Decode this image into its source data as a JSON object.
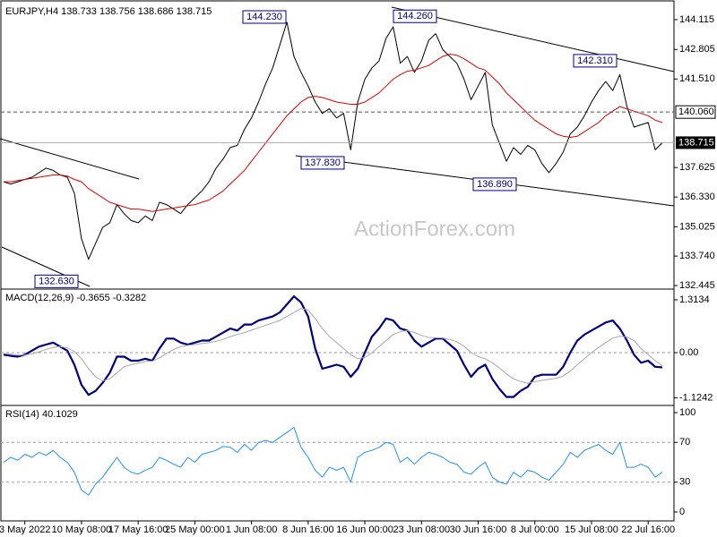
{
  "chart_data": [
    {
      "type": "line",
      "title": "EURJPY,H4 138.733 138.756 138.686 138.715",
      "watermark": "ActionForex.com",
      "categories": [
        null,
        null,
        null,
        "3 May 2022",
        null,
        null,
        null,
        null,
        null,
        null,
        null,
        "10 May 08:00",
        null,
        null,
        null,
        null,
        null,
        null,
        null,
        "17 May 16:00",
        null,
        null,
        null,
        null,
        null,
        null,
        null,
        "25 May 00:00",
        null,
        null,
        null,
        null,
        null,
        null,
        null,
        "1 Jun 08:00",
        null,
        null,
        null,
        null,
        null,
        null,
        null,
        "8 Jun 16:00",
        null,
        null,
        null,
        null,
        null,
        null,
        null,
        "16 Jun 00:00",
        null,
        null,
        null,
        null,
        null,
        null,
        null,
        "23 Jun 08:00",
        null,
        null,
        null,
        null,
        null,
        null,
        null,
        "30 Jun 16:00",
        null,
        null,
        null,
        null,
        null,
        null,
        null,
        "8 Jul 00:00",
        null,
        null,
        null,
        null,
        null,
        null,
        null,
        "15 Jul 08:00",
        null,
        null,
        null,
        null,
        null,
        null,
        null,
        "22 Jul 16:00",
        null,
        null
      ],
      "series": [
        {
          "color": "#000000",
          "width": 1,
          "values": [
            137.0,
            136.9,
            137.0,
            137.1,
            137.2,
            137.4,
            137.6,
            137.5,
            137.3,
            137.2,
            136.5,
            134.5,
            133.6,
            134.3,
            135.0,
            135.2,
            136.0,
            135.6,
            135.3,
            135.2,
            135.5,
            135.3,
            136.1,
            136.0,
            135.8,
            135.6,
            136.0,
            136.3,
            136.6,
            137.0,
            137.6,
            138.0,
            138.5,
            138.6,
            139.3,
            139.8,
            140.5,
            141.3,
            142.0,
            143.0,
            144.0,
            142.5,
            141.8,
            141.2,
            140.5,
            140.0,
            140.2,
            139.8,
            140.0,
            138.4,
            140.5,
            141.5,
            142.0,
            142.3,
            143.3,
            143.8,
            142.2,
            142.5,
            141.8,
            142.3,
            143.2,
            143.5,
            142.8,
            142.5,
            142.2,
            141.5,
            140.6,
            141.2,
            141.8,
            139.5,
            138.7,
            137.9,
            138.5,
            138.2,
            138.6,
            138.4,
            137.8,
            137.4,
            137.8,
            138.3,
            139.1,
            139.4,
            139.9,
            140.5,
            141.0,
            141.4,
            141.0,
            141.7,
            140.3,
            139.4,
            139.5,
            139.6,
            138.4,
            138.715
          ]
        },
        {
          "color": "#e00000",
          "width": 1,
          "values": [
            137.0,
            137.0,
            137.05,
            137.1,
            137.15,
            137.2,
            137.25,
            137.3,
            137.3,
            137.25,
            137.1,
            137.0,
            136.7,
            136.5,
            136.3,
            136.1,
            136.0,
            135.9,
            135.8,
            135.8,
            135.75,
            135.7,
            135.75,
            135.8,
            135.85,
            135.9,
            135.95,
            136.0,
            136.1,
            136.2,
            136.4,
            136.6,
            136.9,
            137.2,
            137.5,
            137.9,
            138.3,
            138.7,
            139.1,
            139.5,
            139.9,
            140.2,
            140.5,
            140.7,
            140.75,
            140.7,
            140.6,
            140.5,
            140.45,
            140.4,
            140.4,
            140.5,
            140.7,
            140.9,
            141.2,
            141.5,
            141.7,
            141.85,
            141.9,
            142.0,
            142.1,
            142.3,
            142.5,
            142.6,
            142.55,
            142.4,
            142.2,
            142.0,
            141.9,
            141.6,
            141.3,
            140.9,
            140.6,
            140.3,
            140.0,
            139.7,
            139.5,
            139.3,
            139.1,
            139.0,
            138.95,
            139.0,
            139.2,
            139.4,
            139.6,
            139.9,
            140.1,
            140.3,
            140.2,
            140.1,
            140.0,
            139.9,
            139.7,
            139.6
          ]
        }
      ],
      "ylim": [
        132.33,
        144.78
      ],
      "yticks": [
        144.115,
        142.805,
        {
          "value": 141.51,
          "label": "141.510"
        },
        137.625,
        {
          "value": 136.33,
          "label": "136.330"
        },
        135.025,
        {
          "value": 133.74,
          "label": "133.740"
        },
        132.445
      ],
      "grid": false,
      "annotations": [
        {
          "value": 144.23,
          "label": "144.230"
        },
        {
          "value": 144.26,
          "label": "144.260"
        },
        {
          "value": 142.31,
          "label": "142.310"
        },
        {
          "value": 137.83,
          "label": "137.830"
        },
        {
          "value": 136.89,
          "label": "136.890"
        },
        {
          "value": 132.63,
          "label": "132.630"
        }
      ],
      "hlines": [
        {
          "value": 140.06,
          "label": "140.060"
        }
      ],
      "last_price": 138.715
    },
    {
      "type": "line",
      "title": "MACD(12,26,9) -0.3655 -0.3282",
      "series": [
        {
          "color": "#00007f",
          "width": 2.2,
          "values": [
            -0.05,
            -0.08,
            -0.1,
            -0.05,
            0.05,
            0.15,
            0.2,
            0.25,
            0.15,
            0.05,
            -0.3,
            -0.8,
            -1.05,
            -0.95,
            -0.75,
            -0.5,
            -0.1,
            -0.1,
            -0.2,
            -0.2,
            -0.15,
            -0.2,
            0.1,
            0.35,
            0.35,
            0.25,
            0.2,
            0.25,
            0.3,
            0.3,
            0.4,
            0.5,
            0.6,
            0.55,
            0.7,
            0.7,
            0.8,
            0.85,
            0.9,
            1.0,
            1.2,
            1.4,
            1.25,
            0.9,
            0.1,
            -0.4,
            -0.35,
            -0.3,
            -0.35,
            -0.6,
            -0.4,
            0.0,
            0.4,
            0.6,
            0.85,
            0.8,
            0.6,
            0.55,
            0.3,
            0.15,
            0.25,
            0.35,
            0.35,
            0.2,
            0.05,
            -0.3,
            -0.6,
            -0.4,
            -0.3,
            -0.65,
            -0.9,
            -1.1,
            -1.1,
            -0.95,
            -0.85,
            -0.6,
            -0.55,
            -0.55,
            -0.55,
            -0.35,
            0.0,
            0.3,
            0.45,
            0.55,
            0.65,
            0.75,
            0.8,
            0.6,
            0.3,
            -0.05,
            -0.25,
            -0.2,
            -0.35,
            -0.3655
          ]
        },
        {
          "color": "#a8a8a8",
          "width": 1,
          "values": [
            -0.02,
            -0.04,
            -0.06,
            -0.06,
            -0.03,
            0.02,
            0.08,
            0.13,
            0.15,
            0.12,
            0.03,
            -0.15,
            -0.4,
            -0.6,
            -0.7,
            -0.65,
            -0.5,
            -0.35,
            -0.3,
            -0.26,
            -0.22,
            -0.21,
            -0.13,
            -0.02,
            0.08,
            0.15,
            0.18,
            0.2,
            0.23,
            0.25,
            0.28,
            0.33,
            0.4,
            0.45,
            0.5,
            0.56,
            0.62,
            0.68,
            0.74,
            0.8,
            0.9,
            1.0,
            1.1,
            1.06,
            0.85,
            0.6,
            0.4,
            0.25,
            0.1,
            -0.05,
            -0.15,
            -0.12,
            0.0,
            0.15,
            0.3,
            0.45,
            0.52,
            0.55,
            0.5,
            0.43,
            0.38,
            0.37,
            0.36,
            0.33,
            0.27,
            0.16,
            0.0,
            -0.1,
            -0.15,
            -0.25,
            -0.38,
            -0.53,
            -0.65,
            -0.72,
            -0.76,
            -0.72,
            -0.69,
            -0.66,
            -0.64,
            -0.58,
            -0.46,
            -0.3,
            -0.15,
            0.0,
            0.13,
            0.25,
            0.36,
            0.41,
            0.39,
            0.3,
            0.1,
            -0.05,
            -0.2,
            -0.3282
          ]
        }
      ],
      "ylim": [
        -1.29,
        1.536
      ],
      "yticks": [
        1.3134,
        {
          "value": 0,
          "label": "0.00"
        },
        -1.1242
      ],
      "grid": true
    },
    {
      "type": "line",
      "title": "RSI(14) 40.1029",
      "series": [
        {
          "color": "#1e90ff",
          "width": 1,
          "values": [
            50,
            55,
            52,
            58,
            55,
            60,
            57,
            62,
            55,
            50,
            40,
            22,
            17,
            28,
            35,
            45,
            55,
            45,
            40,
            38,
            42,
            45,
            55,
            52,
            48,
            45,
            55,
            50,
            58,
            60,
            62,
            66,
            65,
            60,
            68,
            62,
            70,
            72,
            70,
            75,
            80,
            85,
            65,
            55,
            42,
            35,
            45,
            42,
            45,
            30,
            55,
            60,
            62,
            65,
            70,
            68,
            50,
            55,
            48,
            55,
            60,
            58,
            55,
            50,
            48,
            40,
            38,
            45,
            50,
            35,
            30,
            28,
            40,
            35,
            42,
            40,
            35,
            32,
            40,
            48,
            60,
            55,
            62,
            65,
            68,
            62,
            58,
            70,
            45,
            45,
            48,
            45,
            35,
            40.1029
          ]
        }
      ],
      "ylim": [
        -7.2,
        105.4
      ],
      "yticks": [
        100,
        70,
        30,
        0
      ],
      "grid": true
    }
  ]
}
